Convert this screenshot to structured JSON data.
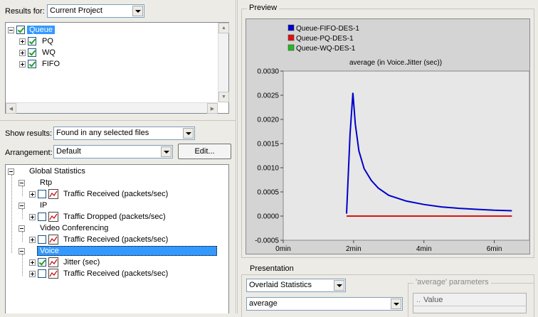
{
  "results_for": {
    "label": "Results for:",
    "value": "Current Project"
  },
  "top_tree": [
    {
      "label": "Queue",
      "checked": true,
      "selected": true
    },
    {
      "label": "PQ",
      "checked": true
    },
    {
      "label": "WQ",
      "checked": true
    },
    {
      "label": "FIFO",
      "checked": true
    }
  ],
  "show_results": {
    "label": "Show results:",
    "value": "Found in any selected files"
  },
  "arrangement": {
    "label": "Arrangement:",
    "value": "Default",
    "edit_label": "Edit..."
  },
  "stats_tree": {
    "root": "Global Statistics",
    "items": [
      {
        "label": "Rtp",
        "level": 1
      },
      {
        "label": "Traffic Received (packets/sec)",
        "level": 2,
        "checked": false
      },
      {
        "label": "IP",
        "level": 1
      },
      {
        "label": "Traffic Dropped (packets/sec)",
        "level": 2,
        "checked": false
      },
      {
        "label": "Video Conferencing",
        "level": 1
      },
      {
        "label": "Traffic Received (packets/sec)",
        "level": 2,
        "checked": false
      },
      {
        "label": "Voice",
        "level": 1,
        "selected": true
      },
      {
        "label": "Jitter (sec)",
        "level": 2,
        "checked": true
      },
      {
        "label": "Traffic Received (packets/sec)",
        "level": 2,
        "checked": false
      }
    ]
  },
  "preview": {
    "title": "Preview"
  },
  "chart_data": {
    "type": "line",
    "title": "average (in Voice.Jitter (sec))",
    "x_ticks": [
      "0min",
      "2min",
      "4min",
      "6min"
    ],
    "x_range_min": [
      0,
      7
    ],
    "y_ticks": [
      "0.0030",
      "0.0025",
      "0.0020",
      "0.0015",
      "0.0010",
      "0.0005",
      "0.0000",
      "-0.0005"
    ],
    "y_range": [
      -0.0005,
      0.003
    ],
    "legend_position": "top-left",
    "series": [
      {
        "name": "Queue-FIFO-DES-1",
        "color": "#0000cc",
        "points": [
          [
            1.8,
            5e-05
          ],
          [
            1.9,
            0.0017
          ],
          [
            1.98,
            0.00255
          ],
          [
            2.05,
            0.0019
          ],
          [
            2.15,
            0.00135
          ],
          [
            2.3,
            0.00098
          ],
          [
            2.5,
            0.00074
          ],
          [
            2.7,
            0.00058
          ],
          [
            3.0,
            0.00043
          ],
          [
            3.5,
            0.00031
          ],
          [
            4.0,
            0.00024
          ],
          [
            4.5,
            0.00019
          ],
          [
            5.0,
            0.00016
          ],
          [
            5.5,
            0.00014
          ],
          [
            6.0,
            0.00012
          ],
          [
            6.5,
            0.00011
          ]
        ]
      },
      {
        "name": "Queue-PQ-DES-1",
        "color": "#dd1111",
        "points": [
          [
            1.8,
            0.0
          ],
          [
            6.5,
            0.0
          ]
        ]
      },
      {
        "name": "Queue-WQ-DES-1",
        "color": "#22bb22",
        "points": [
          [
            1.8,
            0.0
          ],
          [
            6.5,
            0.0
          ]
        ]
      }
    ]
  },
  "presentation": {
    "title": "Presentation",
    "mode": "Overlaid Statistics",
    "filter": "average",
    "params_title": "'average' parameters",
    "params_col": "Value"
  }
}
